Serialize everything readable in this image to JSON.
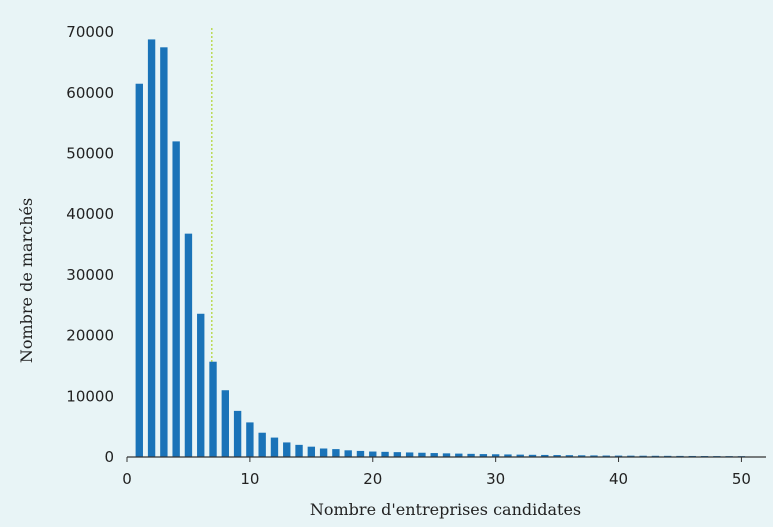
{
  "chart_data": {
    "type": "bar",
    "title": "",
    "xlabel": "Nombre d'entreprises candidates",
    "ylabel": "Nombre de marchés",
    "xlim": [
      0,
      52
    ],
    "ylim": [
      0,
      72000
    ],
    "x_ticks": [
      0,
      10,
      20,
      30,
      40,
      50
    ],
    "y_ticks": [
      0,
      10000,
      20000,
      30000,
      40000,
      50000,
      60000,
      70000
    ],
    "x_tick_labels": [
      "0",
      "10",
      "20",
      "30",
      "40",
      "50"
    ],
    "y_tick_labels": [
      "0",
      "10000",
      "20000",
      "30000",
      "40000",
      "50000",
      "60000",
      "70000"
    ],
    "reference_line_x": 6.9,
    "grid": false,
    "bar_color": "#1a73b8",
    "reference_line_color": "#b8d94a",
    "x": [
      1,
      2,
      3,
      4,
      5,
      6,
      7,
      8,
      9,
      10,
      11,
      12,
      13,
      14,
      15,
      16,
      17,
      18,
      19,
      20,
      21,
      22,
      23,
      24,
      25,
      26,
      27,
      28,
      29,
      30,
      31,
      32,
      33,
      34,
      35,
      36,
      37,
      38,
      39,
      40,
      41,
      42,
      43,
      44,
      45,
      46,
      47,
      48,
      49,
      50
    ],
    "values": [
      61500,
      68800,
      67500,
      52000,
      36800,
      23600,
      15700,
      11000,
      7600,
      5700,
      4000,
      3200,
      2400,
      2000,
      1700,
      1400,
      1300,
      1100,
      1000,
      900,
      850,
      800,
      750,
      700,
      650,
      600,
      560,
      520,
      480,
      450,
      420,
      390,
      360,
      340,
      320,
      300,
      280,
      260,
      240,
      230,
      220,
      210,
      200,
      190,
      180,
      170,
      160,
      150,
      145,
      140
    ]
  }
}
